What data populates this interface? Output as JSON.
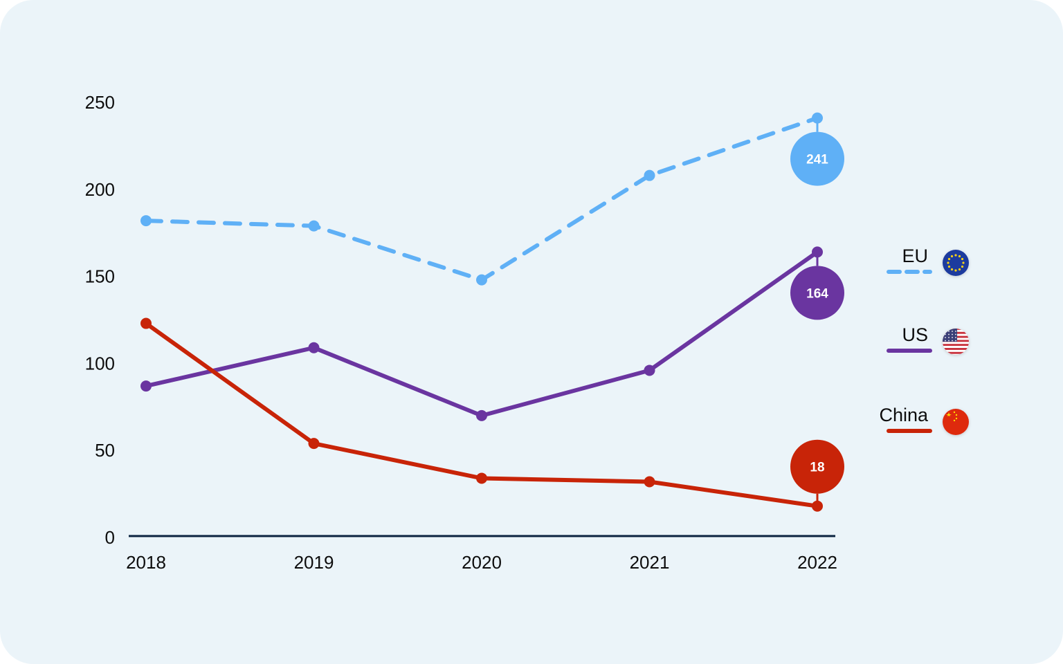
{
  "chart_data": {
    "type": "line",
    "title": "",
    "xlabel": "",
    "ylabel": "",
    "x": [
      "2018",
      "2019",
      "2020",
      "2021",
      "2022"
    ],
    "ylim": [
      0,
      250
    ],
    "yticks": [
      0,
      50,
      100,
      150,
      200,
      250
    ],
    "grid": false,
    "legend_position": "right",
    "series": [
      {
        "name": "EU",
        "values": [
          182,
          179,
          148,
          208,
          241
        ],
        "color": "#5fb0f6",
        "dashed": true,
        "flag_icon": "eu-flag-icon",
        "end_label": "241"
      },
      {
        "name": "US",
        "values": [
          87,
          109,
          70,
          96,
          164
        ],
        "color": "#6a35a0",
        "dashed": false,
        "flag_icon": "us-flag-icon",
        "end_label": "164"
      },
      {
        "name": "China",
        "values": [
          123,
          54,
          34,
          32,
          18
        ],
        "color": "#c82408",
        "dashed": false,
        "flag_icon": "china-flag-icon",
        "end_label": "18"
      }
    ],
    "colors": {
      "background": "#ebf4f9",
      "axis": "#0a2240"
    }
  }
}
